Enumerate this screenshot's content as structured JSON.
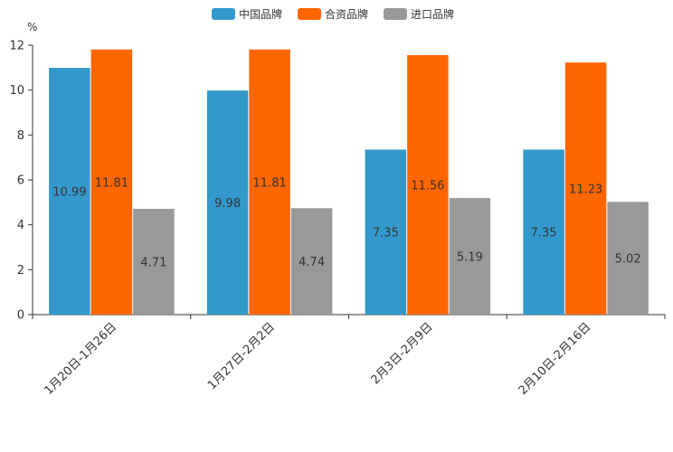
{
  "chart_data": {
    "type": "bar",
    "title": "",
    "xlabel": "",
    "ylabel": "%",
    "ylim": [
      0,
      12
    ],
    "yticks": [
      0,
      2,
      4,
      6,
      8,
      10,
      12
    ],
    "grid": false,
    "legend_position": "top-center",
    "categories": [
      "1月20日-1月26日",
      "1月27日-2月2日",
      "2月3日-2月9日",
      "2月10日-2月16日"
    ],
    "series": [
      {
        "name": "中国品牌",
        "color": "#3399cc",
        "values": [
          10.99,
          9.98,
          7.35,
          7.35
        ]
      },
      {
        "name": "合资品牌",
        "color": "#ff6600",
        "values": [
          11.81,
          11.81,
          11.56,
          11.23
        ]
      },
      {
        "name": "进口品牌",
        "color": "#999999",
        "values": [
          4.71,
          4.74,
          5.19,
          5.02
        ]
      }
    ]
  }
}
